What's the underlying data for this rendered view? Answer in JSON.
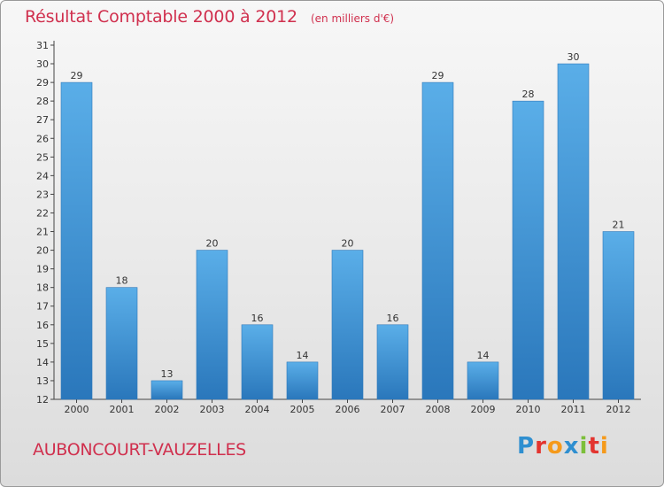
{
  "chart_data": {
    "type": "bar",
    "title": "Résultat Comptable 2000 à 2012",
    "subtitle": "(en milliers d'€)",
    "categories": [
      "2000",
      "2001",
      "2002",
      "2003",
      "2004",
      "2005",
      "2006",
      "2007",
      "2008",
      "2009",
      "2010",
      "2011",
      "2012"
    ],
    "values": [
      29,
      18,
      13,
      20,
      16,
      14,
      20,
      16,
      29,
      14,
      28,
      30,
      21
    ],
    "ylim": [
      12,
      31
    ],
    "ytick_step": 1,
    "xlabel": "",
    "ylabel": "",
    "grid": false,
    "bar_color": "#3f8fd3"
  },
  "footer": {
    "commune": "AUBONCOURT-VAUZELLES",
    "logo_text": "Proxiti",
    "logo_colors": [
      "#2f8fd0",
      "#e3342f",
      "#f59a1b",
      "#2f8fd0",
      "#7cbf3a",
      "#e3342f",
      "#f59a1b"
    ]
  },
  "colors": {
    "title": "#d0304e",
    "axis": "#333333"
  }
}
